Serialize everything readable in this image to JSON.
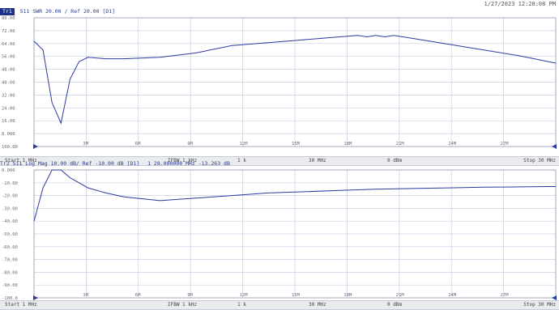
{
  "timestamp": "1/27/2023 12:28:08 PM",
  "colors": {
    "trace": "#2c3aa0",
    "grid": "#c9cfe3",
    "tag_bg": "#1c2f8c",
    "footer_bg": "#e9ebef"
  },
  "footer": {
    "start": "Start 1 MHz",
    "if_bw": "IFBW 1 kHz",
    "points": "1 k",
    "cw_freq": "30 MHz",
    "power": "0 dBm",
    "stop": "Stop 30 MHz"
  },
  "trace1": {
    "tag": "Tr1",
    "label": "S11  SWR  20.00 /  Ref 20.00  [D1]",
    "y_ticks": [
      "80.00",
      "72.00",
      "64.00",
      "56.00",
      "48.00",
      "40.00",
      "32.00",
      "24.00",
      "16.00",
      "8.000",
      "100.00"
    ],
    "x_ticks": [
      "3M",
      "6M",
      "9M",
      "12M",
      "15M",
      "18M",
      "21M",
      "24M",
      "27M"
    ]
  },
  "trace2": {
    "label": "Tr2  S11  Log Mag  10.00 dB/  Ref  -10.00 dB  [D1]",
    "marker_info": "1  28.000000 MHz   -13.263 dB",
    "y_ticks": [
      "0.000",
      "-10.00",
      "-20.00",
      "-30.00",
      "-40.00",
      "-50.00",
      "-60.00",
      "-70.00",
      "-80.00",
      "-90.00",
      "-100.0"
    ],
    "x_ticks": [
      "3M",
      "6M",
      "9M",
      "12M",
      "15M",
      "18M",
      "21M",
      "24M",
      "27M"
    ]
  },
  "chart_data": [
    {
      "type": "line",
      "title": "S11 SWR",
      "x_unit": "MHz",
      "xlim": [
        1,
        30
      ],
      "ylim": [
        0,
        88
      ],
      "series": [
        {
          "name": "S11",
          "x": [
            1,
            1.5,
            2,
            2.5,
            3,
            3.5,
            4,
            5,
            6,
            8,
            10,
            12,
            14,
            16,
            18,
            19,
            19.5,
            20,
            20.5,
            21,
            22,
            24,
            26,
            28,
            30
          ],
          "y": [
            72,
            66,
            30,
            16,
            46,
            58,
            61,
            60,
            60,
            61,
            64,
            69,
            71,
            73,
            75,
            76,
            75,
            76,
            75,
            76,
            74,
            70,
            66,
            62,
            57
          ]
        }
      ]
    },
    {
      "type": "line",
      "title": "S11 Log Mag",
      "x_unit": "MHz",
      "xlim": [
        1,
        30
      ],
      "ylim": [
        -100,
        0
      ],
      "series": [
        {
          "name": "S11",
          "x": [
            1,
            1.5,
            2,
            2.5,
            3,
            4,
            5,
            6,
            8,
            10,
            12,
            14,
            16,
            18,
            20,
            22,
            24,
            26,
            28,
            29.5,
            30
          ],
          "y": [
            -40,
            -14,
            0,
            0,
            -6,
            -14,
            -18,
            -21,
            -24,
            -22,
            -20,
            -18,
            -17,
            -16,
            -15,
            -14.5,
            -14,
            -13.5,
            -13.2,
            -13,
            -13
          ]
        }
      ]
    }
  ]
}
